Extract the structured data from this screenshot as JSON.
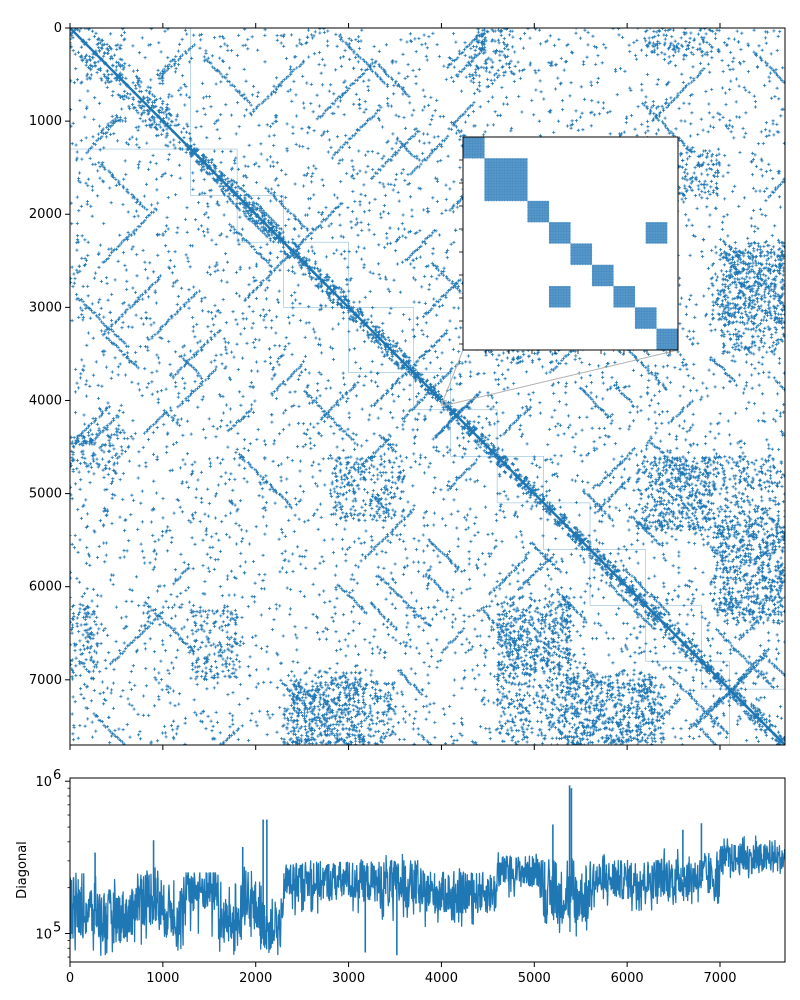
{
  "chart_data": [
    {
      "type": "heatmap",
      "subtype": "sparsity-pattern",
      "title": "",
      "xlabel": "",
      "ylabel": "",
      "matrix_size": 7700,
      "xlim": [
        0,
        7700
      ],
      "ylim": [
        7700,
        0
      ],
      "y_ticks": [
        0,
        1000,
        2000,
        3000,
        4000,
        5000,
        6000,
        7000
      ],
      "x_ticks": [
        0,
        1000,
        2000,
        3000,
        4000,
        5000,
        6000,
        7000
      ],
      "x_ticklabels_shown": false,
      "color": "#1f77b4",
      "marker": "+",
      "diagonal_blocks": [
        [
          0,
          1300
        ],
        [
          1300,
          1800
        ],
        [
          1800,
          2300
        ],
        [
          2300,
          3000
        ],
        [
          3000,
          3700
        ],
        [
          3700,
          4100
        ],
        [
          4100,
          4600
        ],
        [
          4600,
          5100
        ],
        [
          5100,
          5600
        ],
        [
          5600,
          6200
        ],
        [
          6200,
          6800
        ],
        [
          6800,
          7100
        ],
        [
          7100,
          7700
        ]
      ],
      "dense_offdiagonal_regions": [
        {
          "rows": [
            6200,
            7000
          ],
          "cols": [
            0,
            300
          ]
        },
        {
          "rows": [
            6200,
            7000
          ],
          "cols": [
            1300,
            1800
          ]
        },
        {
          "rows": [
            6900,
            7700
          ],
          "cols": [
            2300,
            3200
          ]
        },
        {
          "rows": [
            6900,
            7700
          ],
          "cols": [
            5300,
            6300
          ]
        },
        {
          "rows": [
            4600,
            5400
          ],
          "cols": [
            6300,
            7700
          ]
        },
        {
          "rows": [
            5400,
            6400
          ],
          "cols": [
            7000,
            7700
          ]
        },
        {
          "rows": [
            2400,
            3500
          ],
          "cols": [
            7000,
            7700
          ]
        },
        {
          "rows": [
            6100,
            6900
          ],
          "cols": [
            4600,
            5400
          ]
        },
        {
          "rows": [
            4600,
            5300
          ],
          "cols": [
            2800,
            3600
          ]
        },
        {
          "rows": [
            0,
            600
          ],
          "cols": [
            4300,
            4800
          ]
        }
      ],
      "inset": {
        "region_x": [
          4000,
          4050
        ],
        "region_y": [
          4050,
          4000
        ],
        "blocks": [
          {
            "rows": [
              0,
              4
            ],
            "cols": [
              0,
              4
            ]
          },
          {
            "rows": [
              4,
              12
            ],
            "cols": [
              4,
              12
            ]
          },
          {
            "rows": [
              12,
              16
            ],
            "cols": [
              12,
              16
            ]
          },
          {
            "rows": [
              16,
              20
            ],
            "cols": [
              16,
              20
            ]
          },
          {
            "rows": [
              16,
              20
            ],
            "cols": [
              34,
              38
            ]
          },
          {
            "rows": [
              20,
              24
            ],
            "cols": [
              20,
              24
            ]
          },
          {
            "rows": [
              24,
              28
            ],
            "cols": [
              24,
              28
            ]
          },
          {
            "rows": [
              28,
              32
            ],
            "cols": [
              16,
              20
            ]
          },
          {
            "rows": [
              28,
              32
            ],
            "cols": [
              28,
              32
            ]
          },
          {
            "rows": [
              32,
              36
            ],
            "cols": [
              32,
              36
            ]
          },
          {
            "rows": [
              36,
              40
            ],
            "cols": [
              36,
              40
            ]
          }
        ]
      }
    },
    {
      "type": "line",
      "title": "",
      "xlabel": "",
      "ylabel": "Diagonal",
      "yscale": "log",
      "xlim": [
        0,
        7700
      ],
      "ylim": [
        65000,
        1050000
      ],
      "x_ticks": [
        0,
        1000,
        2000,
        3000,
        4000,
        5000,
        6000,
        7000
      ],
      "y_ticks": [
        100000,
        1000000
      ],
      "y_ticklabels": [
        {
          "base": "10",
          "exp": "5"
        },
        {
          "base": "10",
          "exp": "6"
        }
      ],
      "color": "#1f77b4",
      "segments": [
        {
          "x": [
            0,
            300
          ],
          "level": 140000,
          "low": 75000,
          "high": 250000
        },
        {
          "x": [
            300,
            700
          ],
          "level": 130000,
          "low": 72000,
          "high": 230000
        },
        {
          "x": [
            700,
            950
          ],
          "level": 175000,
          "low": 85000,
          "high": 300000
        },
        {
          "x": [
            950,
            1250
          ],
          "level": 140000,
          "low": 75000,
          "high": 240000
        },
        {
          "x": [
            1250,
            1600
          ],
          "level": 195000,
          "low": 95000,
          "high": 250000
        },
        {
          "x": [
            1600,
            1850
          ],
          "level": 120000,
          "low": 72000,
          "high": 220000
        },
        {
          "x": [
            1850,
            2050
          ],
          "level": 145000,
          "low": 80000,
          "high": 280000
        },
        {
          "x": [
            2050,
            2300
          ],
          "level": 115000,
          "low": 70000,
          "high": 210000
        },
        {
          "x": [
            2300,
            3300
          ],
          "level": 220000,
          "low": 130000,
          "high": 310000
        },
        {
          "x": [
            3300,
            3750
          ],
          "level": 210000,
          "low": 120000,
          "high": 340000
        },
        {
          "x": [
            3750,
            4600
          ],
          "level": 185000,
          "low": 110000,
          "high": 270000
        },
        {
          "x": [
            4600,
            5100
          ],
          "level": 255000,
          "low": 170000,
          "high": 340000
        },
        {
          "x": [
            5100,
            5600
          ],
          "level": 175000,
          "low": 95000,
          "high": 310000
        },
        {
          "x": [
            5600,
            6300
          ],
          "level": 225000,
          "low": 140000,
          "high": 330000
        },
        {
          "x": [
            6300,
            7000
          ],
          "level": 235000,
          "low": 150000,
          "high": 360000
        },
        {
          "x": [
            7000,
            7700
          ],
          "level": 310000,
          "low": 230000,
          "high": 440000
        }
      ],
      "spikes": [
        {
          "x": 270,
          "y": 340000
        },
        {
          "x": 900,
          "y": 410000
        },
        {
          "x": 1860,
          "y": 370000
        },
        {
          "x": 2080,
          "y": 560000
        },
        {
          "x": 2120,
          "y": 560000
        },
        {
          "x": 3180,
          "y": 75000
        },
        {
          "x": 3520,
          "y": 72000
        },
        {
          "x": 5200,
          "y": 520000
        },
        {
          "x": 5380,
          "y": 940000
        },
        {
          "x": 5400,
          "y": 900000
        },
        {
          "x": 6800,
          "y": 530000
        },
        {
          "x": 6600,
          "y": 480000
        }
      ]
    }
  ]
}
